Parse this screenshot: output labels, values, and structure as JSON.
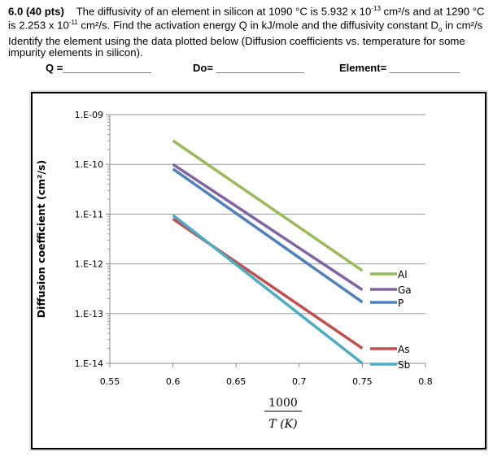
{
  "question": {
    "number": "6.0 (40 pts)",
    "line1": "The diffusivity of an element in silicon at 1090 °C is 5.932 x 10",
    "exp1": "-13",
    "line1b": " cm²/s and at 1290 °C is 2.253 x 10",
    "exp2": "-11",
    "line2": " cm²/s. Find the activation energy Q in kJ/mole and the diffusivity constant D",
    "sub": "o",
    "line3": " in cm²/s Identify the element using the data plotted below (Diffusion coefficients vs. temperature for some impurity elements in silicon).",
    "q_label": "Q =_______________",
    "do_label": "Do= _______________",
    "element_label": "Element= ____________"
  },
  "chart_data": {
    "type": "line",
    "xlabel_num": "1000",
    "xlabel_den": "T (K)",
    "ylabel": "Diffusion coefficient (cm²/s)",
    "xlim": [
      0.55,
      0.8
    ],
    "ylim": [
      1e-14,
      1e-09
    ],
    "yscale": "log",
    "xticks": [
      "0.55",
      "0.6",
      "0.65",
      "0.7",
      "0.75",
      "0.8"
    ],
    "yticks": [
      "1.E-09",
      "1.E-10",
      "1.E-11",
      "1.E-12",
      "1.E-13",
      "1.E-14"
    ],
    "grid": "horizontal",
    "legend": "right (inline labels)",
    "series": [
      {
        "name": "Al",
        "color": "#9bbb59",
        "x": [
          0.6,
          0.75
        ],
        "y": [
          3e-10,
          7.3e-13
        ]
      },
      {
        "name": "Ga",
        "color": "#8064a2",
        "x": [
          0.6,
          0.75
        ],
        "y": [
          1e-10,
          3e-13
        ]
      },
      {
        "name": "P",
        "color": "#4f81bd",
        "x": [
          0.6,
          0.75
        ],
        "y": [
          8.1e-11,
          1.7e-13
        ]
      },
      {
        "name": "As",
        "color": "#c0504d",
        "x": [
          0.6,
          0.75
        ],
        "y": [
          8e-12,
          2e-14
        ]
      },
      {
        "name": "Sb",
        "color": "#4bacc6",
        "x": [
          0.6,
          0.75
        ],
        "y": [
          9.5e-12,
          1e-14
        ]
      }
    ]
  }
}
